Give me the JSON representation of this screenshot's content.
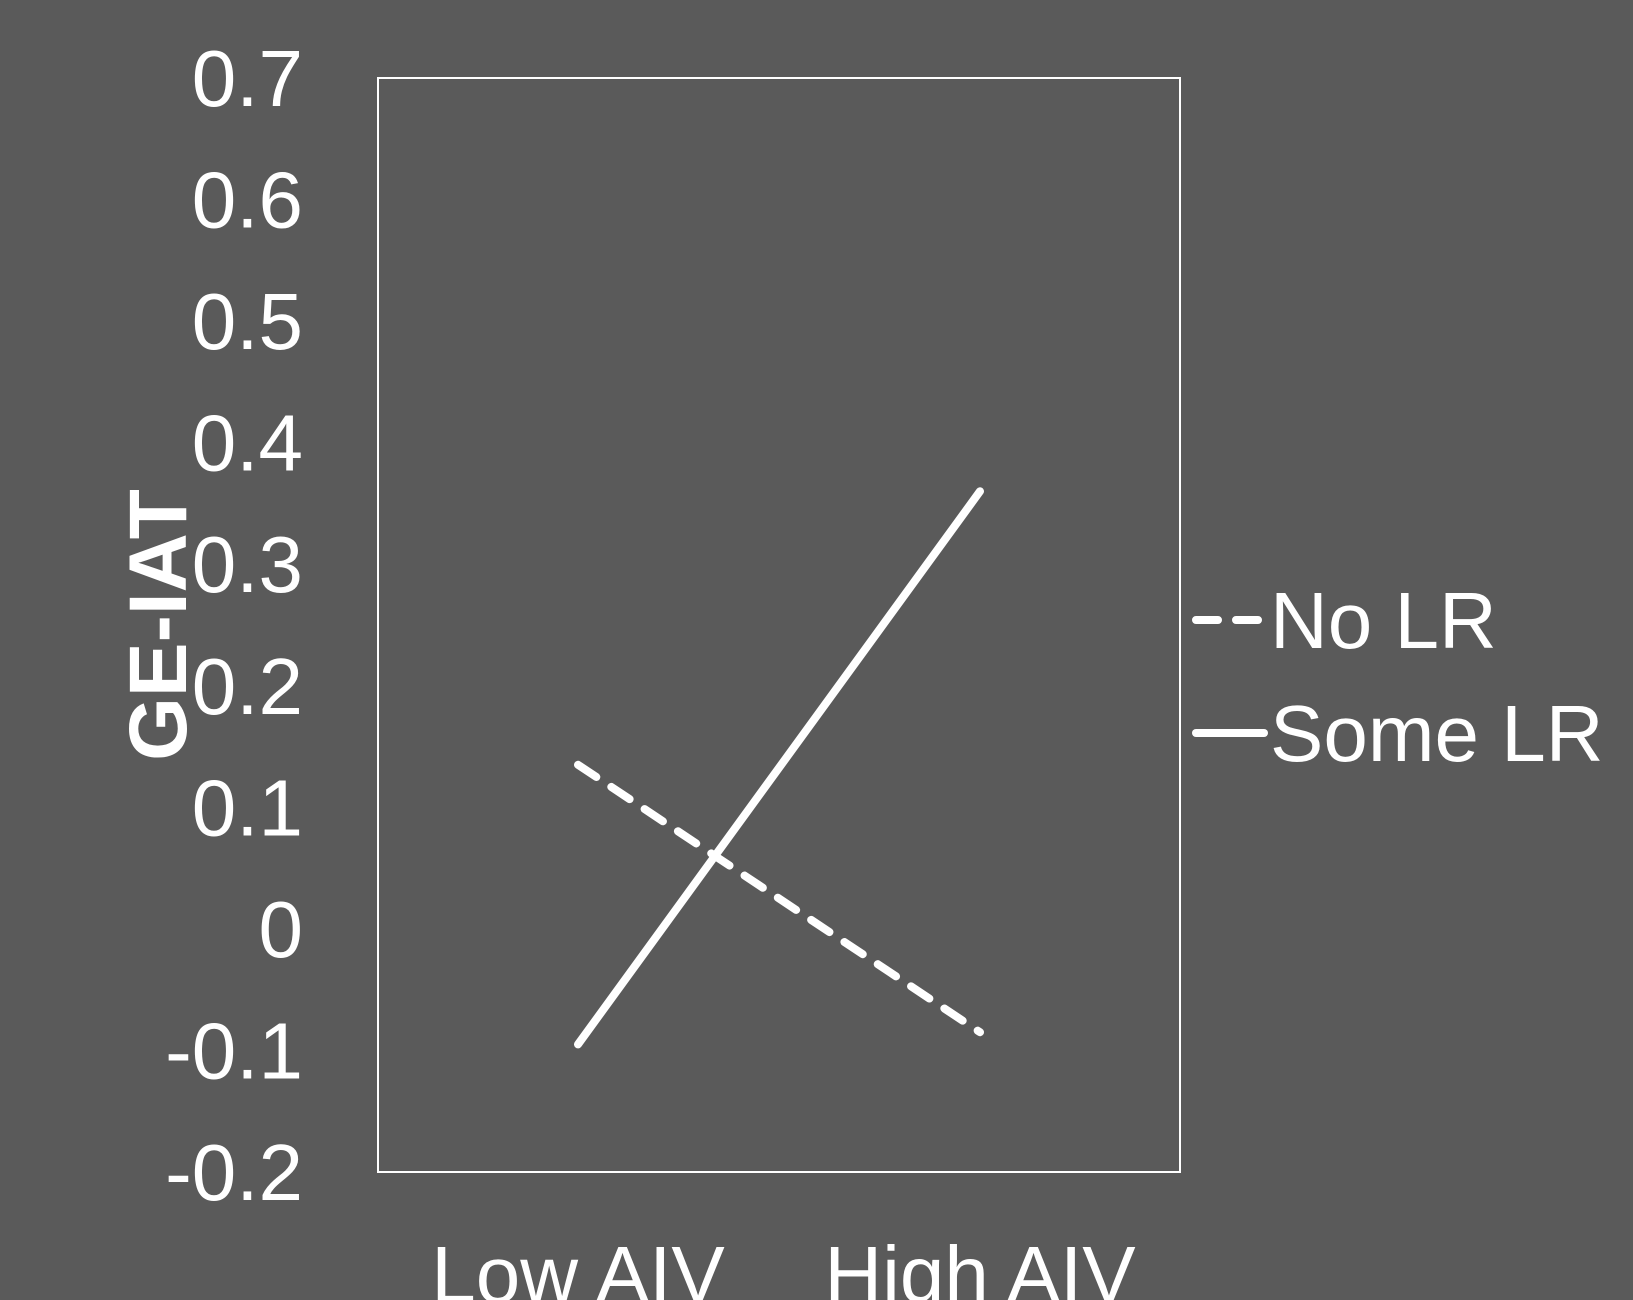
{
  "chart_data": {
    "type": "line",
    "ylabel": "GE-IAT",
    "xlabel": "",
    "categories": [
      "Low AIV",
      "High AIV"
    ],
    "ylim": [
      -0.2,
      0.7
    ],
    "yticks": [
      "0.7",
      "0.6",
      "0.5",
      "0.4",
      "0.3",
      "0.2",
      "0.1",
      "0",
      "-0.1",
      "-0.2"
    ],
    "ytick_values": [
      0.7,
      0.6,
      0.5,
      0.4,
      0.3,
      0.2,
      0.1,
      0,
      -0.1,
      -0.2
    ],
    "grid": false,
    "legend_position": "right",
    "series": [
      {
        "name": "No LR",
        "style": "dashed",
        "values": [
          0.135,
          -0.085
        ]
      },
      {
        "name": "Some LR",
        "style": "solid",
        "values": [
          -0.095,
          0.36
        ]
      }
    ],
    "colors": {
      "background": "#5a5a5a",
      "foreground": "#ffffff"
    }
  }
}
